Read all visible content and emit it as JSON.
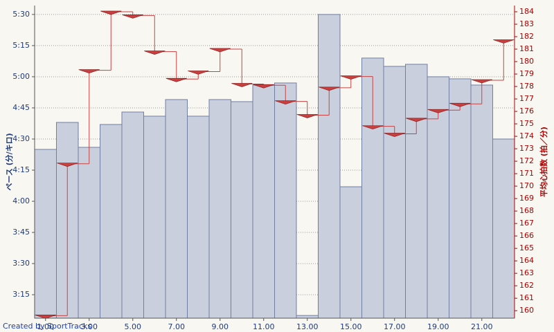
{
  "chart_data": {
    "type": "bar",
    "ylabel": "ペース (分/キロ)",
    "y2label": "平均心拍数 (拍／分)",
    "credit": "Created by SportTracks",
    "x": [
      1,
      2,
      3,
      4,
      5,
      6,
      7,
      8,
      9,
      10,
      11,
      12,
      13,
      14,
      15,
      16,
      17,
      18,
      19,
      20,
      21,
      22
    ],
    "xlim": [
      0.5,
      22.5
    ],
    "xticks": [
      {
        "value": 1,
        "label": "1.00"
      },
      {
        "value": 3,
        "label": "3.00"
      },
      {
        "value": 5,
        "label": "5.00"
      },
      {
        "value": 7,
        "label": "7.00"
      },
      {
        "value": 9,
        "label": "9.00"
      },
      {
        "value": 11,
        "label": "11.00"
      },
      {
        "value": 13,
        "label": "13.00"
      },
      {
        "value": 15,
        "label": "15.00"
      },
      {
        "value": 17,
        "label": "17.00"
      },
      {
        "value": 19,
        "label": "19.00"
      },
      {
        "value": 21,
        "label": "21.00"
      }
    ],
    "ylim": [
      183.7,
      334.3
    ],
    "yticks": [
      {
        "value": 195,
        "label": "3:15"
      },
      {
        "value": 210,
        "label": "3:30"
      },
      {
        "value": 225,
        "label": "3:45"
      },
      {
        "value": 240,
        "label": "4:00"
      },
      {
        "value": 255,
        "label": "4:15"
      },
      {
        "value": 270,
        "label": "4:30"
      },
      {
        "value": 285,
        "label": "4:45"
      },
      {
        "value": 300,
        "label": "5:00"
      },
      {
        "value": 315,
        "label": "5:15"
      },
      {
        "value": 330,
        "label": "5:30"
      }
    ],
    "y2lim": [
      159.4,
      184.5
    ],
    "y2ticks": [
      160,
      161,
      162,
      163,
      164,
      165,
      166,
      167,
      168,
      169,
      170,
      171,
      172,
      173,
      174,
      175,
      176,
      177,
      178,
      179,
      180,
      181,
      182,
      183,
      184
    ],
    "grid": true,
    "series": [
      {
        "type": "bar",
        "color": "#c9cfdd",
        "values": [
          265,
          278,
          266,
          277,
          283,
          281,
          289,
          281,
          289,
          288,
          296,
          297,
          185,
          330,
          247,
          309,
          305,
          306,
          300,
          299,
          296,
          270
        ]
      },
      {
        "type": "step",
        "axis": "y2",
        "color": "#c94040",
        "values": [
          159.6,
          171.8,
          179.3,
          184,
          183.7,
          180.8,
          178.6,
          179.2,
          181,
          178.2,
          178.1,
          176.8,
          175.7,
          177.9,
          178.8,
          174.8,
          174.2,
          175.4,
          176.1,
          176.6,
          178.5,
          181.7
        ]
      }
    ]
  }
}
